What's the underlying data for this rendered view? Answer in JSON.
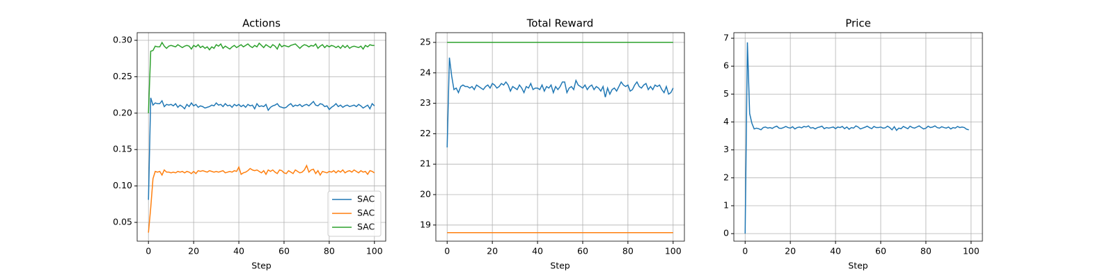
{
  "chart_data": [
    {
      "type": "line",
      "title": "Actions",
      "x_label": "Step",
      "x": [
        0,
        1,
        2,
        3,
        4,
        5,
        6,
        7,
        8,
        9,
        10,
        11,
        12,
        13,
        14,
        15,
        16,
        17,
        18,
        19,
        20,
        21,
        22,
        23,
        24,
        25,
        26,
        27,
        28,
        29,
        30,
        31,
        32,
        33,
        34,
        35,
        36,
        37,
        38,
        39,
        40,
        41,
        42,
        43,
        44,
        45,
        46,
        47,
        48,
        49,
        50,
        51,
        52,
        53,
        54,
        55,
        56,
        57,
        58,
        59,
        60,
        61,
        62,
        63,
        64,
        65,
        66,
        67,
        68,
        69,
        70,
        71,
        72,
        73,
        74,
        75,
        76,
        77,
        78,
        79,
        80,
        81,
        82,
        83,
        84,
        85,
        86,
        87,
        88,
        89,
        90,
        91,
        92,
        93,
        94,
        95,
        96,
        97,
        98,
        99,
        100
      ],
      "series": [
        {
          "name": "SAC",
          "color": "#1f77b4",
          "values": [
            0.081,
            0.221,
            0.211,
            0.214,
            0.213,
            0.213,
            0.217,
            0.209,
            0.212,
            0.211,
            0.212,
            0.21,
            0.213,
            0.208,
            0.211,
            0.209,
            0.206,
            0.212,
            0.209,
            0.214,
            0.21,
            0.212,
            0.208,
            0.21,
            0.209,
            0.207,
            0.208,
            0.209,
            0.211,
            0.21,
            0.214,
            0.211,
            0.212,
            0.209,
            0.213,
            0.21,
            0.211,
            0.208,
            0.212,
            0.21,
            0.212,
            0.209,
            0.211,
            0.208,
            0.212,
            0.21,
            0.211,
            0.206,
            0.213,
            0.209,
            0.21,
            0.209,
            0.212,
            0.204,
            0.208,
            0.21,
            0.211,
            0.213,
            0.209,
            0.208,
            0.207,
            0.208,
            0.211,
            0.213,
            0.209,
            0.211,
            0.21,
            0.212,
            0.209,
            0.211,
            0.212,
            0.21,
            0.213,
            0.216,
            0.211,
            0.21,
            0.213,
            0.212,
            0.209,
            0.21,
            0.205,
            0.208,
            0.21,
            0.213,
            0.209,
            0.211,
            0.208,
            0.21,
            0.211,
            0.209,
            0.21,
            0.211,
            0.209,
            0.212,
            0.21,
            0.207,
            0.209,
            0.211,
            0.206,
            0.213,
            0.21
          ]
        },
        {
          "name": "SAC",
          "color": "#ff7f0e",
          "values": [
            0.036,
            0.07,
            0.11,
            0.12,
            0.119,
            0.12,
            0.115,
            0.122,
            0.119,
            0.119,
            0.118,
            0.119,
            0.118,
            0.12,
            0.119,
            0.12,
            0.118,
            0.12,
            0.119,
            0.117,
            0.12,
            0.117,
            0.121,
            0.12,
            0.121,
            0.12,
            0.119,
            0.121,
            0.12,
            0.119,
            0.12,
            0.119,
            0.12,
            0.121,
            0.118,
            0.119,
            0.12,
            0.119,
            0.121,
            0.12,
            0.126,
            0.116,
            0.118,
            0.119,
            0.121,
            0.124,
            0.122,
            0.121,
            0.122,
            0.12,
            0.118,
            0.121,
            0.116,
            0.122,
            0.12,
            0.122,
            0.119,
            0.117,
            0.122,
            0.121,
            0.118,
            0.117,
            0.121,
            0.119,
            0.117,
            0.122,
            0.12,
            0.118,
            0.119,
            0.122,
            0.128,
            0.119,
            0.122,
            0.123,
            0.117,
            0.121,
            0.115,
            0.12,
            0.119,
            0.118,
            0.12,
            0.119,
            0.121,
            0.118,
            0.121,
            0.119,
            0.122,
            0.118,
            0.12,
            0.121,
            0.119,
            0.122,
            0.12,
            0.118,
            0.121,
            0.119,
            0.12,
            0.116,
            0.121,
            0.12,
            0.118
          ]
        },
        {
          "name": "SAC",
          "color": "#2ca02c",
          "values": [
            0.2,
            0.285,
            0.286,
            0.292,
            0.291,
            0.291,
            0.297,
            0.292,
            0.289,
            0.292,
            0.293,
            0.292,
            0.291,
            0.294,
            0.292,
            0.29,
            0.292,
            0.293,
            0.292,
            0.288,
            0.293,
            0.291,
            0.294,
            0.29,
            0.292,
            0.289,
            0.291,
            0.287,
            0.291,
            0.289,
            0.294,
            0.292,
            0.295,
            0.289,
            0.292,
            0.29,
            0.288,
            0.291,
            0.293,
            0.29,
            0.292,
            0.294,
            0.291,
            0.293,
            0.295,
            0.292,
            0.29,
            0.293,
            0.291,
            0.296,
            0.293,
            0.29,
            0.294,
            0.292,
            0.29,
            0.294,
            0.292,
            0.288,
            0.295,
            0.291,
            0.293,
            0.292,
            0.291,
            0.293,
            0.294,
            0.295,
            0.292,
            0.289,
            0.292,
            0.294,
            0.293,
            0.291,
            0.293,
            0.292,
            0.295,
            0.289,
            0.292,
            0.294,
            0.29,
            0.293,
            0.291,
            0.293,
            0.292,
            0.29,
            0.292,
            0.289,
            0.293,
            0.29,
            0.293,
            0.289,
            0.291,
            0.292,
            0.291,
            0.29,
            0.292,
            0.288,
            0.293,
            0.291,
            0.294,
            0.293,
            0.293
          ]
        }
      ],
      "xlim": [
        -5,
        105
      ],
      "ylim": [
        0.0242,
        0.3105
      ],
      "xticks": [
        0,
        20,
        40,
        60,
        80,
        100
      ],
      "yticks": [
        0.05,
        {
          "value": 0.1,
          "label": "0.10"
        },
        0.15,
        {
          "value": 0.2,
          "label": "0.20"
        },
        0.25,
        {
          "value": 0.3,
          "label": "0.30"
        }
      ],
      "grid": true,
      "legend": "lower right"
    },
    {
      "type": "line",
      "title": "Total Reward",
      "x_label": "Step",
      "x": [
        0,
        1,
        2,
        3,
        4,
        5,
        6,
        7,
        8,
        9,
        10,
        11,
        12,
        13,
        14,
        15,
        16,
        17,
        18,
        19,
        20,
        21,
        22,
        23,
        24,
        25,
        26,
        27,
        28,
        29,
        30,
        31,
        32,
        33,
        34,
        35,
        36,
        37,
        38,
        39,
        40,
        41,
        42,
        43,
        44,
        45,
        46,
        47,
        48,
        49,
        50,
        51,
        52,
        53,
        54,
        55,
        56,
        57,
        58,
        59,
        60,
        61,
        62,
        63,
        64,
        65,
        66,
        67,
        68,
        69,
        70,
        71,
        72,
        73,
        74,
        75,
        76,
        77,
        78,
        79,
        80,
        81,
        82,
        83,
        84,
        85,
        86,
        87,
        88,
        89,
        90,
        91,
        92,
        93,
        94,
        95,
        96,
        97,
        98,
        99,
        100
      ],
      "series": [
        {
          "color": "#1f77b4",
          "values": [
            21.55,
            24.5,
            23.9,
            23.45,
            23.5,
            23.35,
            23.55,
            23.6,
            23.55,
            23.55,
            23.5,
            23.55,
            23.45,
            23.6,
            23.55,
            23.5,
            23.45,
            23.55,
            23.6,
            23.5,
            23.65,
            23.6,
            23.5,
            23.55,
            23.65,
            23.6,
            23.7,
            23.6,
            23.4,
            23.55,
            23.5,
            23.45,
            23.6,
            23.5,
            23.35,
            23.55,
            23.5,
            23.65,
            23.45,
            23.5,
            23.5,
            23.45,
            23.6,
            23.4,
            23.55,
            23.5,
            23.6,
            23.35,
            23.55,
            23.45,
            23.55,
            23.7,
            23.7,
            23.35,
            23.5,
            23.55,
            23.45,
            23.75,
            23.6,
            23.55,
            23.5,
            23.6,
            23.45,
            23.55,
            23.6,
            23.45,
            23.55,
            23.5,
            23.4,
            23.55,
            23.2,
            23.5,
            23.3,
            23.45,
            23.5,
            23.4,
            23.55,
            23.7,
            23.6,
            23.55,
            23.6,
            23.4,
            23.45,
            23.6,
            23.7,
            23.55,
            23.5,
            23.6,
            23.65,
            23.45,
            23.55,
            23.45,
            23.6,
            23.55,
            23.6,
            23.45,
            23.35,
            23.55,
            23.3,
            23.35,
            23.5
          ]
        },
        {
          "color": "#ff7f0e",
          "x": [
            0,
            100
          ],
          "values": [
            18.75,
            18.75
          ]
        },
        {
          "color": "#2ca02c",
          "x": [
            0,
            100
          ],
          "values": [
            25,
            25
          ]
        }
      ],
      "xlim": [
        -5,
        105
      ],
      "ylim": [
        18.47,
        25.32
      ],
      "xticks": [
        0,
        20,
        40,
        60,
        80,
        100
      ],
      "yticks": [
        19,
        20,
        21,
        22,
        23,
        24,
        25
      ],
      "grid": true
    },
    {
      "type": "line",
      "title": "Price",
      "x_label": "Step",
      "x": [
        0,
        1,
        2,
        3,
        4,
        5,
        6,
        7,
        8,
        9,
        10,
        11,
        12,
        13,
        14,
        15,
        16,
        17,
        18,
        19,
        20,
        21,
        22,
        23,
        24,
        25,
        26,
        27,
        28,
        29,
        30,
        31,
        32,
        33,
        34,
        35,
        36,
        37,
        38,
        39,
        40,
        41,
        42,
        43,
        44,
        45,
        46,
        47,
        48,
        49,
        50,
        51,
        52,
        53,
        54,
        55,
        56,
        57,
        58,
        59,
        60,
        61,
        62,
        63,
        64,
        65,
        66,
        67,
        68,
        69,
        70,
        71,
        72,
        73,
        74,
        75,
        76,
        77,
        78,
        79,
        80,
        81,
        82,
        83,
        84,
        85,
        86,
        87,
        88,
        89,
        90,
        91,
        92,
        93,
        94,
        95,
        96,
        97,
        98,
        99
      ],
      "series": [
        {
          "color": "#1f77b4",
          "values": [
            0,
            6.85,
            4.3,
            3.95,
            3.75,
            3.78,
            3.76,
            3.72,
            3.8,
            3.82,
            3.78,
            3.8,
            3.77,
            3.82,
            3.85,
            3.78,
            3.77,
            3.8,
            3.84,
            3.8,
            3.78,
            3.83,
            3.75,
            3.8,
            3.82,
            3.79,
            3.84,
            3.82,
            3.86,
            3.78,
            3.8,
            3.75,
            3.8,
            3.82,
            3.85,
            3.76,
            3.8,
            3.78,
            3.8,
            3.82,
            3.76,
            3.82,
            3.8,
            3.84,
            3.76,
            3.82,
            3.74,
            3.8,
            3.78,
            3.86,
            3.82,
            3.75,
            3.78,
            3.81,
            3.85,
            3.8,
            3.76,
            3.84,
            3.8,
            3.8,
            3.82,
            3.78,
            3.79,
            3.85,
            3.8,
            3.72,
            3.83,
            3.7,
            3.78,
            3.76,
            3.84,
            3.8,
            3.76,
            3.85,
            3.8,
            3.78,
            3.82,
            3.86,
            3.8,
            3.75,
            3.78,
            3.85,
            3.8,
            3.82,
            3.86,
            3.8,
            3.78,
            3.83,
            3.8,
            3.78,
            3.82,
            3.75,
            3.8,
            3.78,
            3.84,
            3.8,
            3.82,
            3.8,
            3.74,
            3.72
          ]
        }
      ],
      "xlim": [
        -5,
        105
      ],
      "ylim": [
        -0.27,
        7.2
      ],
      "xticks": [
        0,
        20,
        40,
        60,
        80,
        100
      ],
      "yticks": [
        0,
        1,
        2,
        3,
        4,
        5,
        6,
        7
      ],
      "grid": true
    }
  ]
}
